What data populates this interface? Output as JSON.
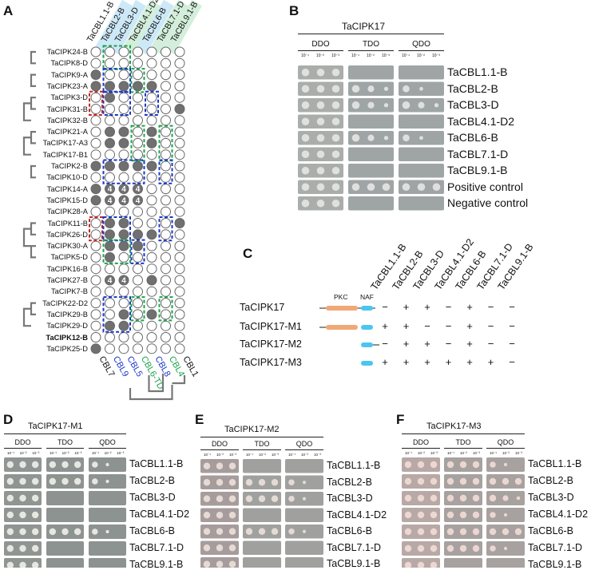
{
  "panels": {
    "A": {
      "letter": "A",
      "cbl_headers": [
        "TaCBL1.1-B",
        "TaCBL2-B",
        "TaCBL3-D",
        "TaCBL4.1-D2",
        "TaCBL6-B",
        "TaCBL7.1-D",
        "TaCBL9.1-B"
      ],
      "header_colors": [
        "#ffffff",
        "#cde9f7",
        "#cde9f7",
        "#d3efdb",
        "#cde9f7",
        "#d3efdb",
        "#d3efdb"
      ],
      "cipks": [
        "TaCIPK24-B",
        "TaCIPK8-D",
        "TaCIPK9-A",
        "TaCIPK23-A",
        "TaCIPK3-D",
        "TaCIPK31-B",
        "TaCIPK32-B",
        "TaCIPK21-A",
        "TaCIPK17-A3",
        "TaCIPK17-B1",
        "TaCIPK2-B",
        "TaCIPK10-D",
        "TaCIPK14-A",
        "TaCIPK15-D",
        "TaCIPK28-A",
        "TaCIPK11-B",
        "TaCIPK26-D",
        "TaCIPK30-A",
        "TaCIPK5-D",
        "TaCIPK16-B",
        "TaCIPK27-B",
        "TaCIPK7-B",
        "TaCIPK22-D2",
        "TaCIPK29-B",
        "TaCIPK29-D",
        "TaCIPK12-B",
        "TaCIPK25-D"
      ],
      "bold_index": 25,
      "grid": [
        [
          0,
          0,
          0,
          0,
          0,
          0,
          0
        ],
        [
          0,
          0,
          0,
          0,
          0,
          0,
          0
        ],
        [
          1,
          0,
          0,
          0,
          0,
          0,
          0
        ],
        [
          1,
          1,
          1,
          1,
          1,
          0,
          0
        ],
        [
          0,
          1,
          0,
          0,
          0,
          0,
          0
        ],
        [
          0,
          0,
          0,
          0,
          0,
          0,
          1
        ],
        [
          0,
          0,
          0,
          0,
          0,
          0,
          0
        ],
        [
          0,
          1,
          1,
          0,
          1,
          0,
          0
        ],
        [
          0,
          1,
          1,
          0,
          1,
          0,
          0
        ],
        [
          0,
          0,
          0,
          0,
          0,
          0,
          0
        ],
        [
          1,
          1,
          1,
          1,
          1,
          0,
          0
        ],
        [
          0,
          0,
          0,
          0,
          0,
          0,
          0
        ],
        [
          1,
          4,
          4,
          4,
          0,
          0,
          0
        ],
        [
          1,
          4,
          4,
          4,
          0,
          0,
          0
        ],
        [
          0,
          0,
          0,
          0,
          0,
          0,
          0
        ],
        [
          0,
          1,
          1,
          0,
          0,
          0,
          1
        ],
        [
          0,
          1,
          1,
          1,
          1,
          0,
          0
        ],
        [
          0,
          1,
          1,
          1,
          0,
          0,
          0
        ],
        [
          0,
          1,
          0,
          0,
          0,
          0,
          0
        ],
        [
          0,
          0,
          0,
          0,
          0,
          0,
          0
        ],
        [
          0,
          4,
          4,
          0,
          1,
          0,
          0
        ],
        [
          0,
          0,
          0,
          0,
          0,
          0,
          0
        ],
        [
          0,
          0,
          0,
          0,
          0,
          0,
          0
        ],
        [
          0,
          0,
          1,
          0,
          1,
          0,
          0
        ],
        [
          0,
          1,
          1,
          0,
          0,
          0,
          0
        ],
        [
          0,
          0,
          0,
          0,
          0,
          0,
          0
        ],
        [
          1,
          0,
          0,
          0,
          0,
          0,
          0
        ]
      ],
      "four_label": "4",
      "boxes": [
        {
          "color": "#1aa34a",
          "r0": 0,
          "r1": 1,
          "c0": 1,
          "c1": 2
        },
        {
          "color": "#1a36c9",
          "r0": 2,
          "r1": 3,
          "c0": 1,
          "c1": 2
        },
        {
          "color": "#1aa34a",
          "r0": 2,
          "r1": 3,
          "c0": 3,
          "c1": 3
        },
        {
          "color": "#1a36c9",
          "r0": 4,
          "r1": 5,
          "c0": 1,
          "c1": 2
        },
        {
          "color": "#c92323",
          "r0": 4,
          "r1": 5,
          "c0": 0,
          "c1": 0
        },
        {
          "color": "#1a36c9",
          "r0": 4,
          "r1": 5,
          "c0": 4,
          "c1": 4
        },
        {
          "color": "#1aa34a",
          "r0": 7,
          "r1": 9,
          "c0": 3,
          "c1": 3
        },
        {
          "color": "#1aa34a",
          "r0": 7,
          "r1": 9,
          "c0": 5,
          "c1": 5
        },
        {
          "color": "#1a36c9",
          "r0": 10,
          "r1": 11,
          "c0": 1,
          "c1": 3
        },
        {
          "color": "#1a36c9",
          "r0": 10,
          "r1": 11,
          "c0": 5,
          "c1": 5
        },
        {
          "color": "#c92323",
          "r0": 15,
          "r1": 16,
          "c0": 0,
          "c1": 0
        },
        {
          "color": "#1a36c9",
          "r0": 15,
          "r1": 16,
          "c0": 1,
          "c1": 2
        },
        {
          "color": "#1a36c9",
          "r0": 15,
          "r1": 16,
          "c0": 5,
          "c1": 5
        },
        {
          "color": "#1aa34a",
          "r0": 17,
          "r1": 18,
          "c0": 1,
          "c1": 2
        },
        {
          "color": "#1a36c9",
          "r0": 17,
          "r1": 18,
          "c0": 3,
          "c1": 3
        },
        {
          "color": "#1a36c9",
          "r0": 22,
          "r1": 24,
          "c0": 1,
          "c1": 2
        },
        {
          "color": "#1aa34a",
          "r0": 22,
          "r1": 23,
          "c0": 3,
          "c1": 3
        },
        {
          "color": "#1aa34a",
          "r0": 22,
          "r1": 23,
          "c0": 5,
          "c1": 5
        }
      ],
      "bottom_labels": [
        {
          "text": "CBL7",
          "color": "#111111"
        },
        {
          "text": "CBL9",
          "color": "#1a36c9"
        },
        {
          "text": "CBL5",
          "color": "#1a36c9"
        },
        {
          "text": "CBL6-TD",
          "color": "#1aa34a"
        },
        {
          "text": "CBL8",
          "color": "#1a36c9"
        },
        {
          "text": "CBL4",
          "color": "#1aa34a"
        },
        {
          "text": "CBL1",
          "color": "#111111"
        }
      ]
    },
    "B": {
      "letter": "B",
      "title": "TaCIPK17",
      "conditions": [
        "DDO",
        "TDO",
        "QDO"
      ],
      "dilutions": [
        "10⁻¹",
        "10⁻²",
        "10⁻³"
      ],
      "rows": [
        "TaCBL1.1-B",
        "TaCBL2-B",
        "TaCBL3-D",
        "TaCBL4.1-D2",
        "TaCBL6-B",
        "TaCBL7.1-D",
        "TaCBL9.1-B",
        "Positive control",
        "Negative control"
      ]
    },
    "C": {
      "letter": "C",
      "headers": [
        "TaCBL1.1-B",
        "TaCBL2-B",
        "TaCBL3-D",
        "TaCBL4.1-D2",
        "TaCBL6-B",
        "TaCBL7.1-D",
        "TaCBL9.1-B"
      ],
      "pkc_label": "PKC",
      "naf_label": "NAF",
      "constructs": [
        {
          "name": "TaCIPK17",
          "signs": [
            "−",
            "+",
            "+",
            "−",
            "+",
            "−",
            "−"
          ]
        },
        {
          "name": "TaCIPK17-M1",
          "signs": [
            "+",
            "+",
            "−",
            "−",
            "+",
            "−",
            "−"
          ]
        },
        {
          "name": "TaCIPK17-M2",
          "signs": [
            "−",
            "+",
            "+",
            "−",
            "+",
            "−",
            "−"
          ]
        },
        {
          "name": "TaCIPK17-M3",
          "signs": [
            "+",
            "+",
            "+",
            "+",
            "+",
            "+",
            "−"
          ]
        }
      ]
    },
    "D": {
      "letter": "D",
      "title": "TaCIPK17-M1",
      "conditions": [
        "DDO",
        "TDO",
        "QDO"
      ],
      "dilutions": [
        "10⁻¹",
        "10⁻²",
        "10⁻³"
      ],
      "rows": [
        "TaCBL1.1-B",
        "TaCBL2-B",
        "TaCBL3-D",
        "TaCBL4.1-D2",
        "TaCBL6-B",
        "TaCBL7.1-D",
        "TaCBL9.1-B"
      ]
    },
    "E": {
      "letter": "E",
      "title": "TaCIPK17-M2",
      "conditions": [
        "DDO",
        "TDO",
        "QDO"
      ],
      "dilutions": [
        "10⁻¹",
        "10⁻²",
        "10⁻³"
      ],
      "rows": [
        "TaCBL1.1-B",
        "TaCBL2-B",
        "TaCBL3-D",
        "TaCBL4.1-D2",
        "TaCBL6-B",
        "TaCBL7.1-D",
        "TaCBL9.1-B"
      ]
    },
    "F": {
      "letter": "F",
      "title": "TaCIPK17-M3",
      "conditions": [
        "DDO",
        "TDO",
        "QDO"
      ],
      "dilutions": [
        "10⁻¹",
        "10⁻²",
        "10⁻³"
      ],
      "rows": [
        "TaCBL1.1-B",
        "TaCBL2-B",
        "TaCBL3-D",
        "TaCBL4.1-D2",
        "TaCBL6-B",
        "TaCBL7.1-D",
        "TaCBL9.1-B"
      ]
    }
  }
}
